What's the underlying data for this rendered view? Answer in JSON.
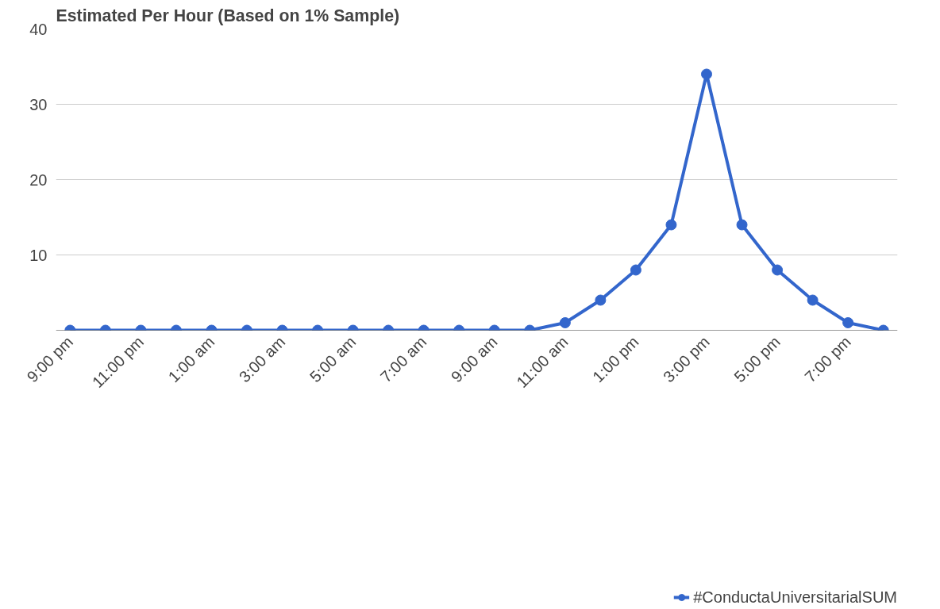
{
  "chart_data": {
    "type": "line",
    "title": "Estimated Per Hour (Based on 1% Sample)",
    "categories": [
      "9:00 pm",
      null,
      "11:00 pm",
      null,
      "1:00 am",
      null,
      "3:00 am",
      null,
      "5:00 am",
      null,
      "7:00 am",
      null,
      "9:00 am",
      null,
      "11:00 am",
      null,
      "1:00 pm",
      null,
      "3:00 pm",
      null,
      "5:00 pm",
      null,
      "7:00 pm",
      null
    ],
    "series": [
      {
        "name": "#ConductaUniversitarialSUM",
        "color": "#3366cc",
        "values": [
          0,
          0,
          0,
          0,
          0,
          0,
          0,
          0,
          0,
          0,
          0,
          0,
          0,
          0,
          1,
          4,
          8,
          14,
          34,
          14,
          8,
          4,
          1,
          0
        ]
      }
    ],
    "ylim": [
      0,
      40
    ],
    "yticks": [
      {
        "value": 0,
        "label": null
      },
      10,
      20,
      30,
      40
    ],
    "grid": "y",
    "legend": "bottom",
    "marker": "circle",
    "line_style": "solid"
  }
}
